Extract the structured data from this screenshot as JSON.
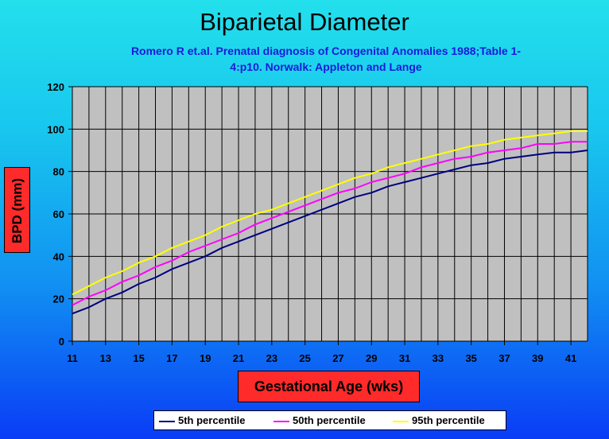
{
  "colors": {
    "plot_bg": "#c0c0c0",
    "grid": "#000000",
    "label_box": "#ff2a2a",
    "title_text": "#000000",
    "subtitle_text": "#1a1adc"
  },
  "chart_data": {
    "type": "line",
    "title": "Biparietal Diameter",
    "subtitle_line1": "Romero R et.al. Prenatal diagnosis of Congenital Anomalies 1988;Table 1-",
    "subtitle_line2": "4:p10. Norwalk: Appleton and Lange",
    "xlabel": "Gestational Age (wks)",
    "ylabel": "BPD (mm)",
    "xlim": [
      11,
      42
    ],
    "ylim": [
      0,
      120
    ],
    "x_ticks": [
      11,
      13,
      15,
      17,
      19,
      21,
      23,
      25,
      27,
      29,
      31,
      33,
      35,
      37,
      39,
      41
    ],
    "y_ticks": [
      0,
      20,
      40,
      60,
      80,
      100,
      120
    ],
    "grid": true,
    "legend_position": "bottom",
    "x": [
      11,
      12,
      13,
      14,
      15,
      16,
      17,
      18,
      19,
      20,
      21,
      22,
      23,
      24,
      25,
      26,
      27,
      28,
      29,
      30,
      31,
      32,
      33,
      34,
      35,
      36,
      37,
      38,
      39,
      40,
      41,
      42
    ],
    "series": [
      {
        "name": "5th percentile",
        "color": "#000080",
        "values": [
          13,
          16,
          20,
          23,
          27,
          30,
          34,
          37,
          40,
          44,
          47,
          50,
          53,
          56,
          59,
          62,
          65,
          68,
          70,
          73,
          75,
          77,
          79,
          81,
          83,
          84,
          86,
          87,
          88,
          89,
          89,
          90
        ]
      },
      {
        "name": "50th percentile",
        "color": "#ff00ff",
        "values": [
          17,
          21,
          24,
          28,
          31,
          35,
          38,
          42,
          45,
          48,
          51,
          55,
          58,
          61,
          64,
          67,
          70,
          72,
          75,
          77,
          79,
          82,
          84,
          86,
          87,
          89,
          90,
          91,
          93,
          93,
          94,
          94
        ]
      },
      {
        "name": "95th percentile",
        "color": "#ffff00",
        "values": [
          22,
          26,
          30,
          33,
          37,
          40,
          44,
          47,
          50,
          54,
          57,
          60,
          62,
          65,
          68,
          71,
          74,
          77,
          79,
          82,
          84,
          86,
          88,
          90,
          92,
          93,
          95,
          96,
          97,
          98,
          99,
          99
        ]
      }
    ]
  }
}
